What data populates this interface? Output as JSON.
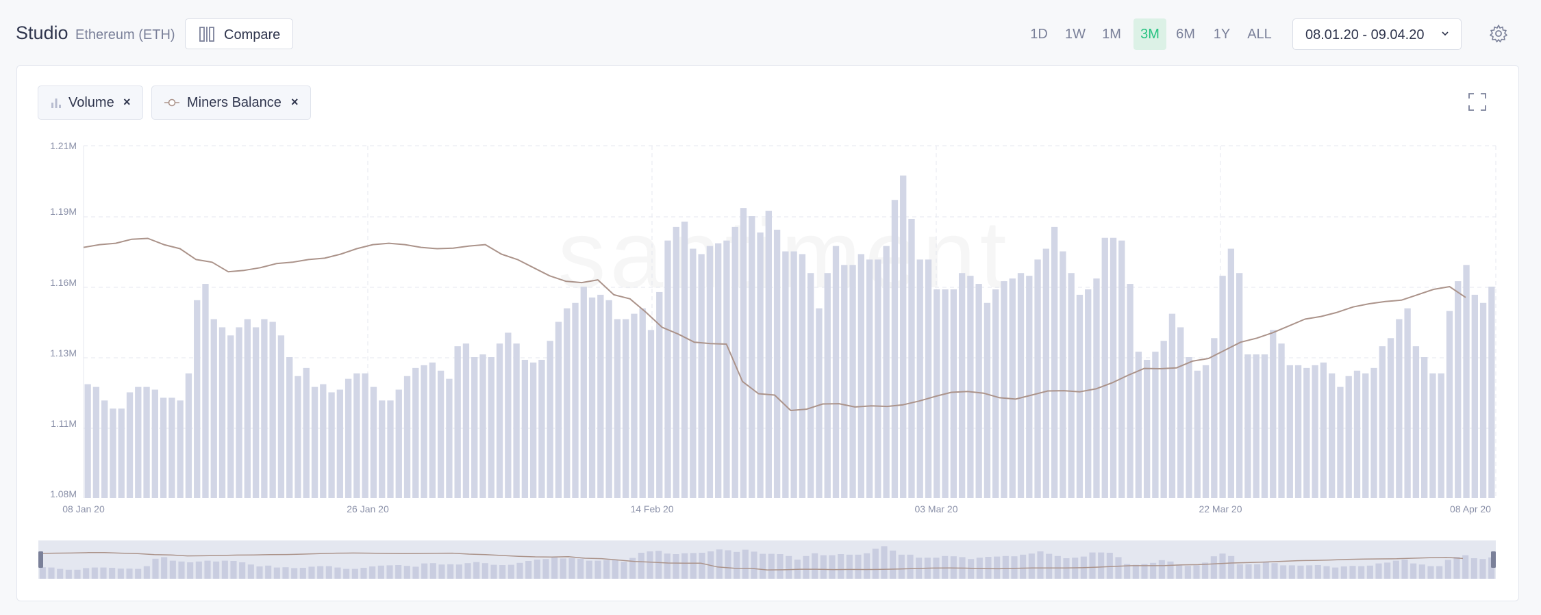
{
  "header": {
    "title": "Studio",
    "subtitle": "Ethereum (ETH)",
    "compare_label": "Compare",
    "ranges": [
      "1D",
      "1W",
      "1M",
      "3M",
      "6M",
      "1Y",
      "ALL"
    ],
    "active_range": "3M",
    "date_range": "08.01.20 - 09.04.20"
  },
  "metrics": [
    {
      "label": "Volume",
      "remove": "×"
    },
    {
      "label": "Miners Balance",
      "remove": "×"
    }
  ],
  "colors": {
    "accent": "#26c281",
    "volume": "#d2d6e6",
    "miners_balance": "#ab938a"
  },
  "watermark": "santiment",
  "chart_data": {
    "type": "bar",
    "x_ticks": [
      "08 Jan 20",
      "26 Jan 20",
      "14 Feb 20",
      "03 Mar 20",
      "22 Mar 20",
      "08 Apr 20"
    ],
    "y_ticks": [
      "1.21M",
      "1.19M",
      "1.16M",
      "1.13M",
      "1.11M",
      "1.08M"
    ],
    "ylim": [
      1080000,
      1210000
    ],
    "grid": true,
    "series": [
      {
        "name": "Volume",
        "type": "bar",
        "values": [
          1122000,
          1121000,
          1116000,
          1113000,
          1113000,
          1119000,
          1121000,
          1121000,
          1120000,
          1117000,
          1117000,
          1116000,
          1126000,
          1153000,
          1159000,
          1146000,
          1143000,
          1140000,
          1143000,
          1146000,
          1143000,
          1146000,
          1145000,
          1140000,
          1132000,
          1125000,
          1128000,
          1121000,
          1122000,
          1119000,
          1120000,
          1124000,
          1126000,
          1126000,
          1121000,
          1116000,
          1116000,
          1120000,
          1125000,
          1128000,
          1129000,
          1130000,
          1127000,
          1124000,
          1136000,
          1137000,
          1132000,
          1133000,
          1132000,
          1137000,
          1141000,
          1137000,
          1131000,
          1130000,
          1131000,
          1138000,
          1145000,
          1150000,
          1152000,
          1158000,
          1154000,
          1155000,
          1153000,
          1146000,
          1146000,
          1148000,
          1150000,
          1142000,
          1156000,
          1175000,
          1180000,
          1182000,
          1172000,
          1170000,
          1173000,
          1174000,
          1175000,
          1180000,
          1187000,
          1184000,
          1178000,
          1186000,
          1179000,
          1171000,
          1171000,
          1170000,
          1163000,
          1150000,
          1163000,
          1173000,
          1166000,
          1166000,
          1170000,
          1168000,
          1168000,
          1173000,
          1190000,
          1199000,
          1183000,
          1168000,
          1168000,
          1157000,
          1157000,
          1157000,
          1163000,
          1162000,
          1159000,
          1152000,
          1157000,
          1160000,
          1161000,
          1163000,
          1162000,
          1168000,
          1172000,
          1180000,
          1171000,
          1163000,
          1155000,
          1157000,
          1161000,
          1176000,
          1176000,
          1175000,
          1159000,
          1134000,
          1131000,
          1134000,
          1138000,
          1148000,
          1143000,
          1132000,
          1127000,
          1129000,
          1139000,
          1162000,
          1172000,
          1163000,
          1133000,
          1133000,
          1133000,
          1142000,
          1137000,
          1129000,
          1129000,
          1128000,
          1129000,
          1130000,
          1126000,
          1121000,
          1125000,
          1127000,
          1126000,
          1128000,
          1136000,
          1139000,
          1146000,
          1150000,
          1136000,
          1132000,
          1126000,
          1126000,
          1149000,
          1160000,
          1166000,
          1155000,
          1152000,
          1158000
        ]
      },
      {
        "name": "Miners Balance",
        "type": "line",
        "values": [
          1172500,
          1173500,
          1174000,
          1175500,
          1175800,
          1173500,
          1172000,
          1168000,
          1167000,
          1163500,
          1164000,
          1165000,
          1166500,
          1167000,
          1168000,
          1168500,
          1170000,
          1172000,
          1173500,
          1174000,
          1173500,
          1172500,
          1172000,
          1172200,
          1173000,
          1173500,
          1170000,
          1168000,
          1165000,
          1162000,
          1160000,
          1159500,
          1160500,
          1155000,
          1153500,
          1148500,
          1143000,
          1140500,
          1137500,
          1137000,
          1136800,
          1123000,
          1118500,
          1118000,
          1112300,
          1112800,
          1114700,
          1114800,
          1113600,
          1114000,
          1113800,
          1114400,
          1115800,
          1117500,
          1119000,
          1119300,
          1118700,
          1117000,
          1116500,
          1118000,
          1119500,
          1119600,
          1119200,
          1120300,
          1122500,
          1125300,
          1127800,
          1127700,
          1128000,
          1130500,
          1131500,
          1134500,
          1137500,
          1139000,
          1141000,
          1143500,
          1146000,
          1147000,
          1148500,
          1150500,
          1151700,
          1152500,
          1153000,
          1155000,
          1157000,
          1158000,
          1154000
        ]
      }
    ]
  }
}
